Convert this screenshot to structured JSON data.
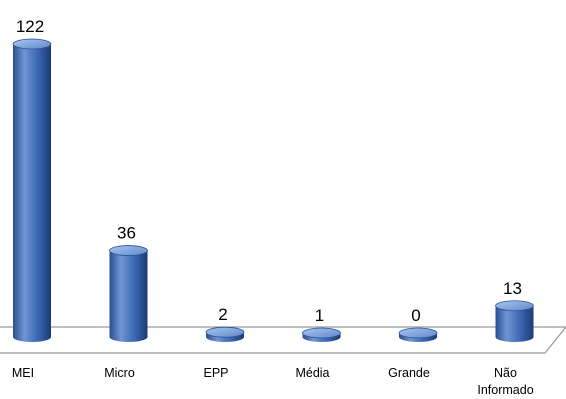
{
  "chart_data": {
    "type": "bar",
    "style": "3d-cylinder",
    "categories": [
      "MEI",
      "Micro",
      "EPP",
      "Média",
      "Grande",
      "Não Informado"
    ],
    "category_lines": [
      [
        "MEI"
      ],
      [
        "Micro"
      ],
      [
        "EPP"
      ],
      [
        "Média"
      ],
      [
        "Grande"
      ],
      [
        "Não",
        "Informado"
      ]
    ],
    "values": [
      122,
      36,
      2,
      1,
      0,
      13
    ],
    "value_labels": [
      "122",
      "36",
      "2",
      "1",
      "0",
      "13"
    ],
    "title": "",
    "xlabel": "",
    "ylabel": "",
    "ylim": [
      0,
      122
    ],
    "grid": false,
    "legend": "none",
    "colors": {
      "bar_light": "#6f96d4",
      "bar_mid": "#3c68b2",
      "bar_dark": "#1c3a72",
      "bar_top": "#8cb0e6",
      "bar_top_edge": "#2b5196",
      "floor_edge": "#9a9a9a",
      "floor_fill": "#ffffff"
    }
  }
}
